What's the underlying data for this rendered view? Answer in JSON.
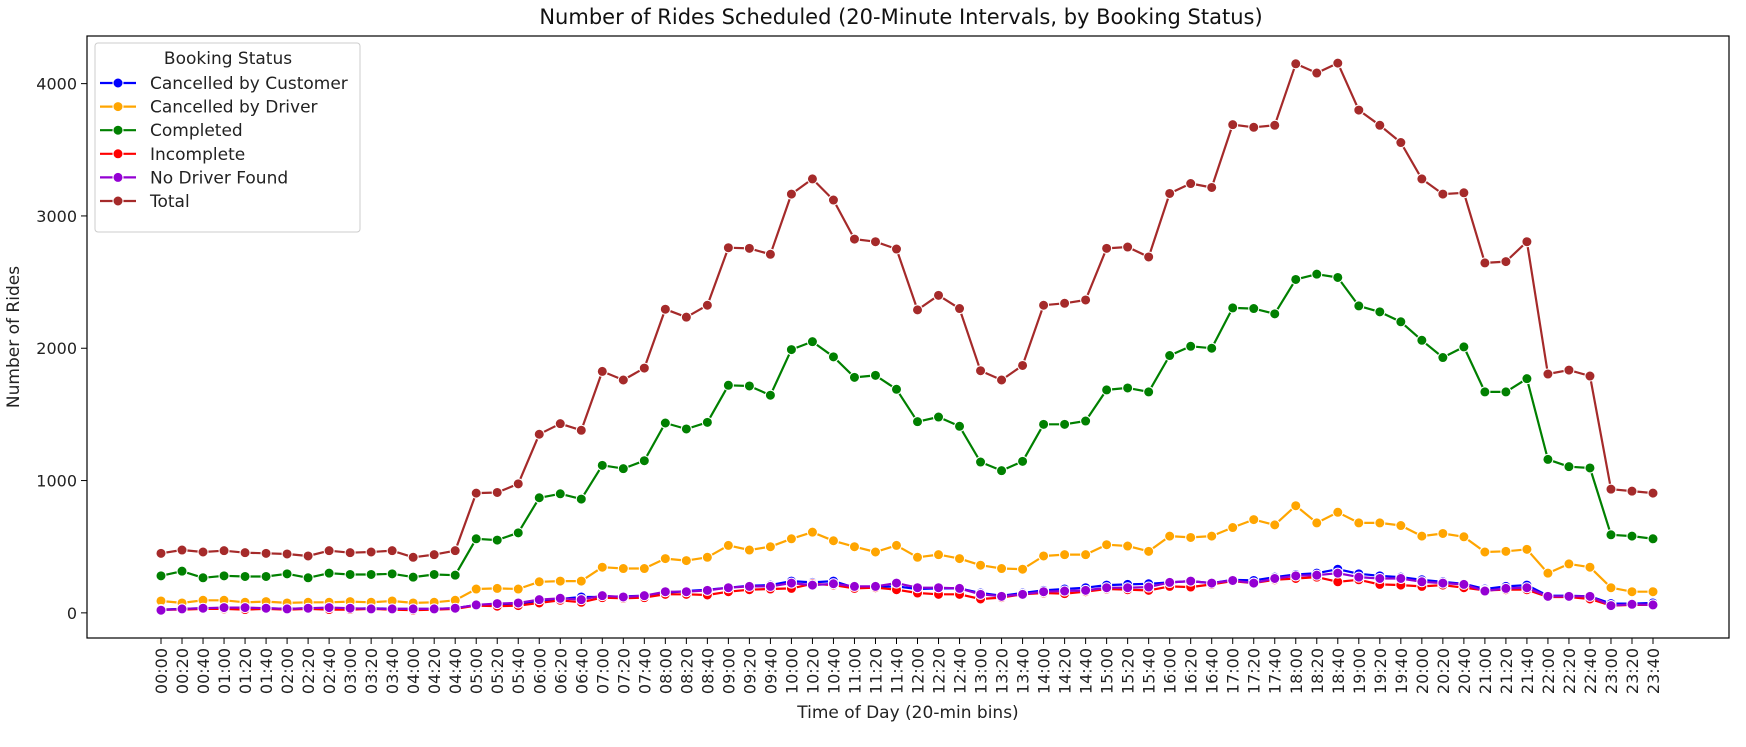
{
  "chart_data": {
    "type": "line",
    "title": "Number of Rides Scheduled (20-Minute Intervals, by Booking Status)",
    "xlabel": "Time of Day (20-min bins)",
    "ylabel": "Number of Rides",
    "ylim": [
      -190,
      4360
    ],
    "yticks": [
      0,
      1000,
      2000,
      3000,
      4000
    ],
    "grid": false,
    "legend": {
      "title": "Booking Status",
      "placement": "top-left"
    },
    "categories": [
      "00:00",
      "00:20",
      "00:40",
      "01:00",
      "01:20",
      "01:40",
      "02:00",
      "02:20",
      "02:40",
      "03:00",
      "03:20",
      "03:40",
      "04:00",
      "04:20",
      "04:40",
      "05:00",
      "05:20",
      "05:40",
      "06:00",
      "06:20",
      "06:40",
      "07:00",
      "07:20",
      "07:40",
      "08:00",
      "08:20",
      "08:40",
      "09:00",
      "09:20",
      "09:40",
      "10:00",
      "10:20",
      "10:40",
      "11:00",
      "11:20",
      "11:40",
      "12:00",
      "12:20",
      "12:40",
      "13:00",
      "13:20",
      "13:40",
      "14:00",
      "14:20",
      "14:40",
      "15:00",
      "15:20",
      "15:40",
      "16:00",
      "16:20",
      "16:40",
      "17:00",
      "17:20",
      "17:40",
      "18:00",
      "18:20",
      "18:40",
      "19:00",
      "19:20",
      "19:40",
      "20:00",
      "20:20",
      "20:40",
      "21:00",
      "21:20",
      "21:40",
      "22:00",
      "22:20",
      "22:40",
      "23:00",
      "23:20",
      "23:40"
    ],
    "series": [
      {
        "name": "Cancelled by Customer",
        "color": "#0000ff",
        "values": [
          25,
          30,
          35,
          35,
          30,
          35,
          30,
          35,
          30,
          30,
          35,
          30,
          30,
          30,
          35,
          60,
          65,
          70,
          90,
          105,
          120,
          120,
          125,
          130,
          150,
          165,
          175,
          190,
          205,
          210,
          240,
          230,
          240,
          190,
          195,
          200,
          180,
          185,
          185,
          150,
          130,
          150,
          170,
          180,
          190,
          210,
          215,
          220,
          230,
          240,
          225,
          250,
          245,
          270,
          290,
          300,
          330,
          295,
          280,
          270,
          250,
          235,
          220,
          180,
          200,
          210,
          130,
          130,
          125,
          70,
          70,
          75
        ]
      },
      {
        "name": "Cancelled by Driver",
        "color": "#ffa500",
        "values": [
          90,
          75,
          95,
          95,
          80,
          85,
          75,
          80,
          80,
          85,
          80,
          90,
          75,
          80,
          95,
          180,
          185,
          180,
          235,
          240,
          240,
          345,
          335,
          335,
          410,
          395,
          420,
          510,
          475,
          500,
          560,
          610,
          545,
          500,
          460,
          510,
          420,
          440,
          410,
          360,
          335,
          330,
          430,
          440,
          440,
          515,
          505,
          465,
          580,
          570,
          580,
          645,
          705,
          665,
          810,
          680,
          760,
          680,
          680,
          660,
          580,
          600,
          575,
          460,
          465,
          480,
          300,
          370,
          345,
          190,
          160,
          160
        ]
      },
      {
        "name": "Completed",
        "color": "#008000",
        "values": [
          280,
          315,
          265,
          280,
          275,
          275,
          295,
          265,
          300,
          290,
          290,
          295,
          270,
          290,
          285,
          560,
          550,
          605,
          870,
          900,
          860,
          1115,
          1090,
          1150,
          1435,
          1390,
          1440,
          1720,
          1715,
          1645,
          1990,
          2050,
          1935,
          1780,
          1795,
          1690,
          1445,
          1480,
          1410,
          1140,
          1075,
          1145,
          1425,
          1425,
          1450,
          1685,
          1700,
          1670,
          1945,
          2015,
          2000,
          2305,
          2300,
          2260,
          2520,
          2560,
          2535,
          2320,
          2275,
          2200,
          2060,
          1930,
          2010,
          1670,
          1670,
          1770,
          1160,
          1105,
          1095,
          590,
          580,
          560
        ]
      },
      {
        "name": "Incomplete",
        "color": "#ff0000",
        "values": [
          25,
          25,
          30,
          30,
          25,
          30,
          25,
          30,
          25,
          25,
          30,
          25,
          20,
          25,
          30,
          55,
          50,
          55,
          75,
          95,
          80,
          115,
          110,
          115,
          140,
          140,
          135,
          160,
          175,
          180,
          185,
          220,
          210,
          185,
          190,
          175,
          150,
          140,
          140,
          105,
          115,
          140,
          150,
          145,
          160,
          180,
          175,
          170,
          200,
          195,
          215,
          240,
          225,
          250,
          260,
          270,
          235,
          250,
          215,
          210,
          200,
          210,
          190,
          170,
          175,
          175,
          120,
          120,
          105,
          55,
          60,
          60
        ]
      },
      {
        "name": "No Driver Found",
        "color": "#9400d3",
        "values": [
          20,
          30,
          35,
          40,
          40,
          35,
          30,
          35,
          40,
          35,
          30,
          30,
          30,
          30,
          35,
          60,
          70,
          75,
          100,
          110,
          100,
          130,
          120,
          130,
          160,
          160,
          170,
          190,
          200,
          200,
          225,
          210,
          220,
          200,
          200,
          225,
          190,
          190,
          185,
          140,
          125,
          140,
          160,
          165,
          170,
          190,
          190,
          195,
          230,
          240,
          225,
          245,
          225,
          260,
          280,
          285,
          300,
          270,
          260,
          260,
          235,
          225,
          215,
          165,
          185,
          190,
          125,
          125,
          125,
          55,
          65,
          60
        ]
      },
      {
        "name": "Total",
        "color": "#a52a2a",
        "values": [
          450,
          475,
          460,
          470,
          455,
          450,
          445,
          430,
          470,
          455,
          460,
          470,
          420,
          440,
          470,
          905,
          910,
          975,
          1350,
          1430,
          1380,
          1825,
          1760,
          1850,
          2295,
          2235,
          2325,
          2760,
          2755,
          2710,
          3165,
          3280,
          3120,
          2825,
          2805,
          2750,
          2290,
          2400,
          2300,
          1830,
          1760,
          1870,
          2325,
          2340,
          2365,
          2755,
          2765,
          2690,
          3170,
          3245,
          3215,
          3690,
          3670,
          3685,
          4150,
          4080,
          4155,
          3800,
          3685,
          3555,
          3280,
          3165,
          3175,
          2645,
          2655,
          2805,
          1805,
          1835,
          1790,
          935,
          920,
          905
        ]
      }
    ]
  }
}
